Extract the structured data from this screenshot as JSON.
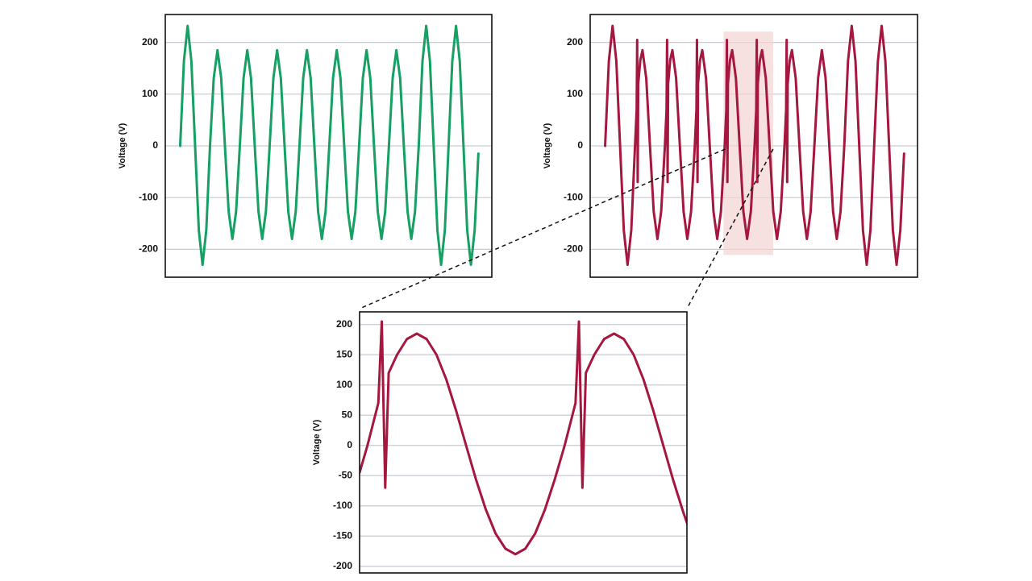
{
  "chart_data": [
    {
      "type": "line",
      "ylabel": "Voltage (V)",
      "color": "#16a063",
      "grid": true,
      "xlim": [
        -10,
        209
      ],
      "ylim": [
        -254,
        254
      ],
      "yticks": [
        -200,
        -100,
        0,
        100,
        200
      ],
      "x": [
        0,
        2.5,
        5,
        7.5,
        10,
        12.5,
        15,
        17.5,
        20,
        22.5,
        25,
        27.5,
        30,
        32.5,
        35,
        37.5,
        40,
        42.5,
        45,
        47.5,
        50,
        52.5,
        55,
        57.5,
        60,
        62.5,
        65,
        67.5,
        70,
        72.5,
        75,
        77.5,
        80,
        82.5,
        85,
        87.5,
        90,
        92.5,
        95,
        97.5,
        100,
        102.5,
        105,
        107.5,
        110,
        112.5,
        115,
        117.5,
        120,
        122.5,
        125,
        127.5,
        130,
        132.5,
        135,
        137.5,
        140,
        142.5,
        145,
        147.5,
        150,
        152.5,
        155,
        157.5,
        160,
        162.5,
        165,
        167.5,
        170,
        172.5,
        175,
        177.5,
        180,
        182.5,
        185,
        187.5,
        190,
        192.5,
        195,
        197.5,
        200
      ],
      "values": [
        0,
        164,
        232,
        164,
        0,
        -163,
        -230,
        -163,
        0,
        131,
        185,
        131,
        0,
        -127,
        -180,
        -127,
        0,
        131,
        185,
        131,
        0,
        -127,
        -180,
        -127,
        0,
        131,
        185,
        131,
        0,
        -127,
        -180,
        -127,
        0,
        131,
        185,
        131,
        0,
        -127,
        -180,
        -127,
        0,
        131,
        185,
        131,
        0,
        -127,
        -180,
        -127,
        0,
        131,
        185,
        131,
        0,
        -127,
        -180,
        -127,
        0,
        131,
        185,
        131,
        0,
        -127,
        -180,
        -127,
        0,
        164,
        232,
        164,
        0,
        -163,
        -230,
        -163,
        0,
        164,
        232,
        164,
        0,
        -163,
        -230,
        -163,
        -15
      ]
    },
    {
      "type": "line",
      "ylabel": "Voltage (V)",
      "color": "#a5173f",
      "grid": true,
      "xlim": [
        -10,
        209
      ],
      "ylim": [
        -254,
        254
      ],
      "yticks": [
        -200,
        -100,
        0,
        100,
        200
      ],
      "x": [
        0,
        2.5,
        5,
        7.5,
        10,
        12.5,
        15,
        17.5,
        20,
        21.1,
        21.45,
        21.8,
        22.15,
        23.5,
        25,
        27.5,
        30,
        32.5,
        35,
        37.5,
        40,
        41.1,
        41.45,
        41.8,
        42.15,
        43.5,
        45,
        47.5,
        50,
        52.5,
        55,
        57.5,
        60,
        61.1,
        61.45,
        61.8,
        62.15,
        63.5,
        65,
        67.5,
        70,
        72.5,
        75,
        77.5,
        80,
        81.1,
        81.45,
        81.8,
        82.15,
        83.5,
        85,
        87.5,
        90,
        92.5,
        95,
        97.5,
        100,
        101.1,
        101.45,
        101.8,
        102.15,
        103.5,
        105,
        107.5,
        110,
        112.5,
        115,
        117.5,
        120,
        121.1,
        121.45,
        121.8,
        122.15,
        123.5,
        125,
        127.5,
        130,
        132.5,
        135,
        137.5,
        140,
        142.5,
        145,
        147.5,
        150,
        152.5,
        155,
        157.5,
        160,
        162.5,
        165,
        167.5,
        170,
        172.5,
        175,
        177.5,
        180,
        182.5,
        185,
        187.5,
        190,
        192.5,
        195,
        197.5,
        200
      ],
      "values": [
        0,
        164,
        232,
        164,
        0,
        -163,
        -230,
        -163,
        0,
        70,
        205,
        -70,
        120,
        165,
        185,
        131,
        0,
        -127,
        -180,
        -127,
        0,
        70,
        205,
        -70,
        120,
        165,
        185,
        131,
        0,
        -127,
        -180,
        -127,
        0,
        70,
        205,
        -70,
        120,
        165,
        185,
        131,
        0,
        -127,
        -180,
        -127,
        0,
        70,
        205,
        -70,
        120,
        165,
        185,
        131,
        0,
        -127,
        -180,
        -127,
        0,
        70,
        205,
        -70,
        120,
        165,
        185,
        131,
        0,
        -127,
        -180,
        -127,
        0,
        70,
        205,
        -70,
        120,
        165,
        185,
        131,
        0,
        -127,
        -180,
        -127,
        0,
        131,
        185,
        131,
        0,
        -127,
        -180,
        -127,
        0,
        164,
        232,
        164,
        0,
        -163,
        -230,
        -163,
        0,
        164,
        232,
        164,
        0,
        -163,
        -230,
        -163,
        -15
      ]
    },
    {
      "type": "line",
      "ylabel": "Voltage (V)",
      "color": "#a5173f",
      "grid": true,
      "xlim": [
        79.2,
        112.4
      ],
      "ylim": [
        -211,
        221
      ],
      "yticks": [
        -200,
        -150,
        -100,
        -50,
        0,
        50,
        100,
        150,
        200
      ],
      "x": [
        79.2,
        80,
        81.1,
        81.45,
        81.8,
        82.15,
        83,
        84,
        85,
        86,
        87,
        88,
        89,
        90,
        91,
        92,
        93,
        94,
        95,
        96,
        97,
        98,
        99,
        100,
        101.1,
        101.45,
        101.8,
        102.15,
        103,
        104,
        105,
        106,
        107,
        108,
        109,
        110,
        111,
        112,
        112.4
      ],
      "values": [
        -45,
        0,
        70,
        205,
        -70,
        120,
        150,
        176,
        185,
        176,
        150,
        109,
        57,
        0,
        -56,
        -106,
        -146,
        -171,
        -180,
        -171,
        -146,
        -106,
        -56,
        0,
        70,
        205,
        -70,
        120,
        150,
        176,
        185,
        176,
        150,
        109,
        57,
        0,
        -57,
        -109,
        -128
      ]
    }
  ]
}
